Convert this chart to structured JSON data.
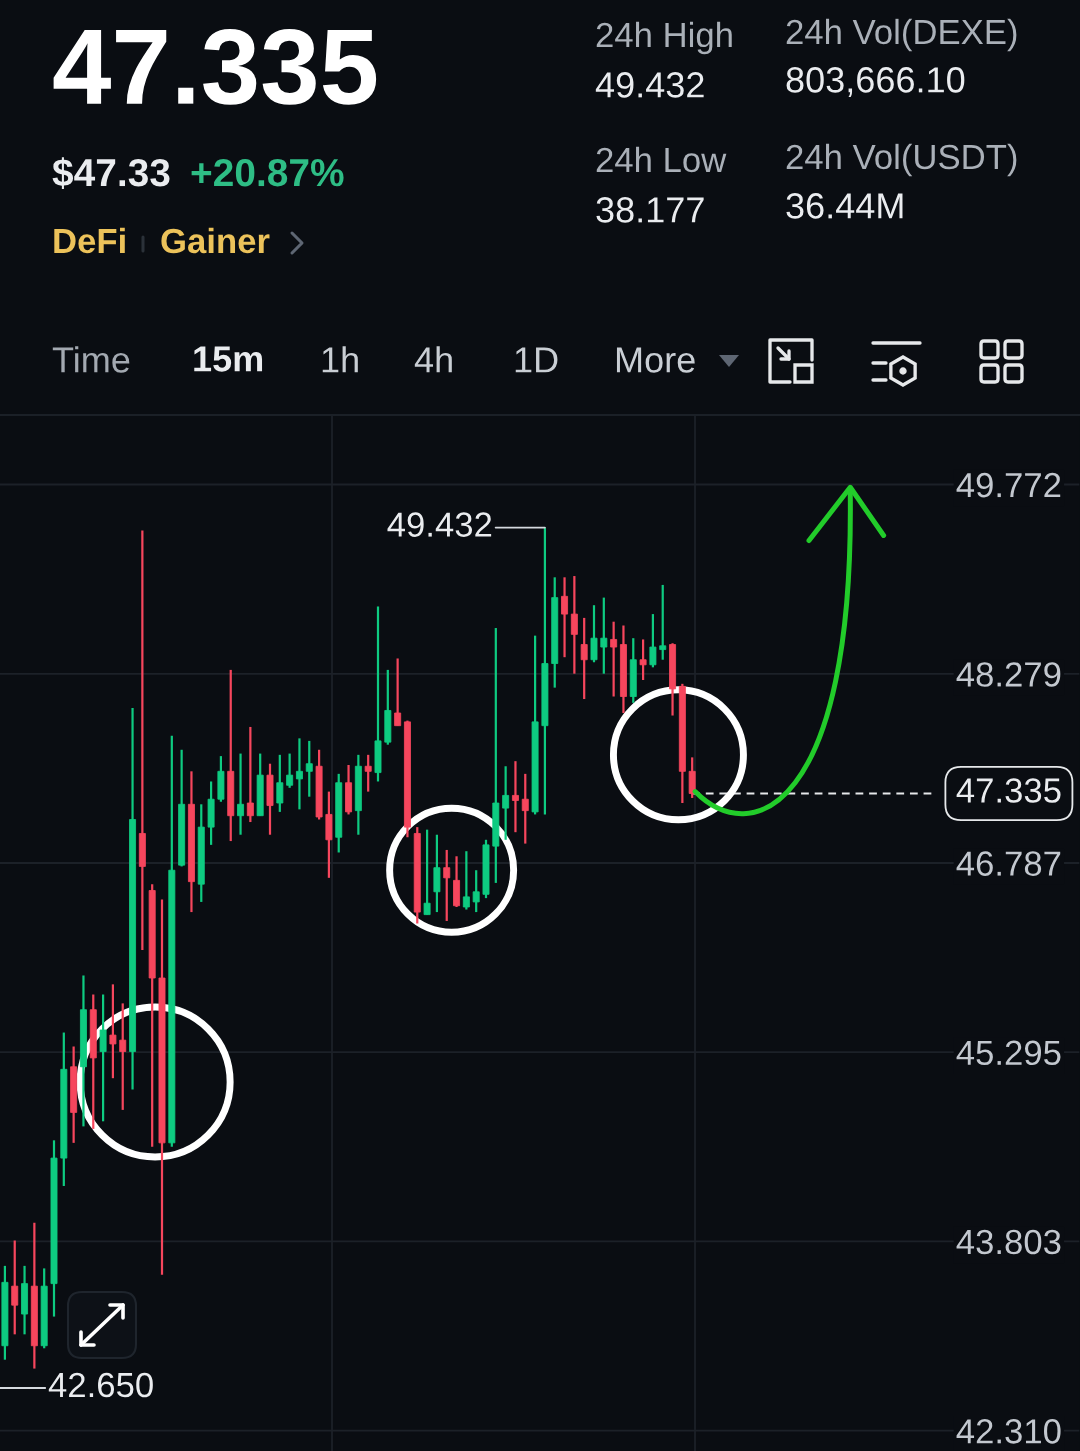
{
  "chart_data": {
    "type": "candlestick",
    "title": "47.335",
    "annotations": [
      "$47.33",
      "+20.87%",
      "DeFi",
      "Gainer",
      "24h High",
      "49.432",
      "24h Low",
      "38.177",
      "24h Vol(DEXE)",
      "803,666.10",
      "24h Vol(USDT)",
      "36.44M",
      "Time",
      "15m",
      "1h",
      "4h",
      "1D",
      "More",
      "49.432",
      "42.650"
    ],
    "categories": [
      null,
      null,
      null,
      null,
      null,
      null,
      null,
      null,
      null,
      null,
      null,
      null,
      null,
      null,
      null,
      null,
      null,
      null,
      null,
      null,
      null,
      null,
      null,
      null,
      null,
      null,
      null,
      null,
      null,
      null,
      null,
      null,
      null,
      null,
      null,
      null,
      null,
      null,
      null,
      null,
      null,
      null,
      null,
      null,
      null,
      null,
      null,
      null,
      null,
      null,
      null,
      null,
      null,
      null,
      null,
      null,
      null,
      null,
      null,
      null,
      null,
      null,
      null,
      null,
      null,
      null,
      null,
      null,
      null,
      null,
      null,
      null,
      null,
      null,
      null,
      null,
      null,
      null,
      null,
      null,
      null,
      null,
      null,
      null,
      null,
      null,
      null,
      null,
      null,
      null,
      null,
      null,
      null,
      null,
      null,
      null,
      null,
      null,
      null,
      null,
      null,
      null,
      null,
      null,
      null,
      null,
      null,
      null,
      null,
      null
    ],
    "ohlc": [
      [
        42.98,
        43.61,
        42.87,
        43.48
      ],
      [
        43.45,
        43.81,
        43.07,
        43.3
      ],
      [
        43.23,
        43.61,
        43.07,
        43.47
      ],
      [
        43.45,
        43.95,
        42.8,
        42.98
      ],
      [
        42.98,
        43.59,
        42.96,
        43.45
      ],
      [
        43.47,
        44.6,
        43.21,
        44.46
      ],
      [
        44.46,
        45.45,
        44.24,
        45.16
      ],
      [
        45.18,
        45.34,
        44.58,
        44.82
      ],
      [
        45.18,
        45.9,
        44.71,
        45.63
      ],
      [
        45.63,
        45.75,
        44.69,
        45.25
      ],
      [
        45.3,
        45.75,
        44.75,
        45.47
      ],
      [
        45.43,
        45.83,
        45.09,
        45.36
      ],
      [
        45.39,
        45.68,
        44.84,
        45.3
      ],
      [
        45.3,
        48.01,
        45.0,
        47.13
      ],
      [
        47.02,
        49.41,
        46.1,
        46.76
      ],
      [
        46.57,
        46.62,
        44.55,
        45.88
      ],
      [
        45.88,
        46.5,
        43.54,
        44.58
      ],
      [
        44.58,
        47.79,
        44.55,
        46.73
      ],
      [
        46.77,
        47.68,
        46.76,
        47.25
      ],
      [
        47.25,
        47.51,
        46.4,
        46.64
      ],
      [
        46.62,
        47.25,
        46.48,
        47.07
      ],
      [
        47.07,
        47.43,
        46.93,
        47.29
      ],
      [
        47.29,
        47.63,
        47.27,
        47.51
      ],
      [
        47.51,
        48.31,
        46.96,
        47.16
      ],
      [
        47.16,
        47.65,
        47.01,
        47.25
      ],
      [
        47.26,
        47.86,
        47.11,
        47.16
      ],
      [
        47.16,
        47.65,
        47.16,
        47.48
      ],
      [
        47.48,
        47.57,
        47.01,
        47.24
      ],
      [
        47.26,
        47.64,
        47.19,
        47.42
      ],
      [
        47.4,
        47.65,
        47.38,
        47.48
      ],
      [
        47.45,
        47.77,
        47.21,
        47.51
      ],
      [
        47.51,
        47.75,
        47.31,
        47.57
      ],
      [
        47.55,
        47.68,
        47.13,
        47.15
      ],
      [
        47.17,
        47.35,
        46.67,
        46.97
      ],
      [
        46.99,
        47.49,
        46.87,
        47.42
      ],
      [
        47.42,
        47.56,
        47.17,
        47.19
      ],
      [
        47.2,
        47.64,
        47.01,
        47.55
      ],
      [
        47.55,
        47.64,
        47.35,
        47.51
      ],
      [
        47.5,
        48.81,
        47.43,
        47.75
      ],
      [
        47.74,
        48.31,
        47.72,
        47.99
      ],
      [
        47.97,
        48.4,
        47.87,
        47.87
      ],
      [
        47.9,
        47.91,
        46.99,
        47.07
      ],
      [
        47.02,
        47.07,
        46.31,
        46.4
      ],
      [
        46.38,
        47.05,
        46.38,
        46.47
      ],
      [
        46.56,
        47.01,
        46.4,
        46.75
      ],
      [
        46.75,
        46.89,
        46.33,
        46.67
      ],
      [
        46.65,
        46.84,
        46.44,
        46.45
      ],
      [
        46.44,
        46.88,
        46.42,
        46.52
      ],
      [
        46.48,
        46.73,
        46.4,
        46.56
      ],
      [
        46.54,
        46.97,
        46.51,
        46.93
      ],
      [
        46.92,
        48.64,
        46.63,
        47.26
      ],
      [
        47.22,
        47.55,
        46.97,
        47.32
      ],
      [
        47.32,
        47.59,
        47.03,
        47.28
      ],
      [
        47.29,
        47.49,
        46.94,
        47.2
      ],
      [
        47.19,
        48.58,
        47.17,
        47.9
      ],
      [
        47.87,
        49.432,
        47.17,
        48.36
      ],
      [
        48.36,
        49.04,
        48.17,
        48.88
      ],
      [
        48.89,
        49.04,
        48.41,
        48.75
      ],
      [
        48.75,
        49.05,
        48.28,
        48.59
      ],
      [
        48.51,
        48.72,
        48.08,
        48.39
      ],
      [
        48.39,
        48.82,
        48.37,
        48.56
      ],
      [
        48.49,
        48.88,
        48.28,
        48.56
      ],
      [
        48.55,
        48.69,
        48.1,
        48.49
      ],
      [
        48.51,
        48.66,
        47.97,
        48.1
      ],
      [
        48.1,
        48.56,
        48.05,
        48.39
      ],
      [
        48.39,
        48.55,
        48.23,
        48.35
      ],
      [
        48.35,
        48.75,
        48.33,
        48.49
      ],
      [
        48.47,
        48.98,
        48.39,
        48.5
      ],
      [
        48.51,
        48.52,
        47.95,
        48.16
      ],
      [
        48.18,
        48.2,
        47.26,
        47.51
      ],
      [
        47.51,
        47.62,
        47.3,
        47.335
      ],
      null,
      null,
      null,
      null,
      null,
      null,
      null,
      null,
      null,
      null,
      null,
      null,
      null,
      null,
      null,
      null,
      null,
      null,
      null,
      null,
      null,
      null,
      null,
      null,
      null,
      null,
      null,
      null,
      null,
      null,
      null,
      null,
      null,
      null,
      null,
      null,
      null,
      null,
      null
    ],
    "colors": [
      "#0ecb81",
      "#f6465d",
      "#0ecb81",
      "#f6465d",
      "#0ecb81",
      "#0ecb81",
      "#0ecb81",
      "#f6465d",
      "#0ecb81",
      "#f6465d",
      "#0ecb81",
      "#f6465d",
      "#f6465d",
      "#0ecb81",
      "#f6465d",
      "#f6465d",
      "#f6465d",
      "#0ecb81",
      "#0ecb81",
      "#f6465d",
      "#0ecb81",
      "#0ecb81",
      "#0ecb81",
      "#f6465d",
      "#0ecb81",
      "#f6465d",
      "#0ecb81",
      "#f6465d",
      "#0ecb81",
      "#0ecb81",
      "#0ecb81",
      "#0ecb81",
      "#f6465d",
      "#f6465d",
      "#0ecb81",
      "#f6465d",
      "#0ecb81",
      "#f6465d",
      "#0ecb81",
      "#0ecb81",
      "#f6465d",
      "#f6465d",
      "#f6465d",
      "#0ecb81",
      "#0ecb81",
      "#f6465d",
      "#f6465d",
      "#0ecb81",
      "#0ecb81",
      "#0ecb81",
      "#0ecb81",
      "#0ecb81",
      "#f6465d",
      "#f6465d",
      "#0ecb81",
      "#0ecb81",
      "#0ecb81",
      "#f6465d",
      "#f6465d",
      "#f6465d",
      "#0ecb81",
      "#0ecb81",
      "#f6465d",
      "#f6465d",
      "#0ecb81",
      "#f6465d",
      "#0ecb81",
      "#0ecb81",
      "#f6465d",
      "#f6465d",
      "#f6465d",
      null,
      null,
      null,
      null,
      null,
      null,
      null,
      null,
      null,
      null,
      null,
      null,
      null,
      null,
      null,
      null,
      null,
      null,
      null,
      null,
      null,
      null,
      null,
      null,
      null,
      null,
      null,
      null,
      null,
      null,
      null,
      null,
      null,
      null,
      null,
      null,
      null,
      null,
      null
    ],
    "ylim": [
      42.15,
      50.32
    ],
    "yticks": [
      49.772,
      48.279,
      46.787,
      45.295,
      43.803,
      {
        "value": 42.31,
        "label": "42.310"
      }
    ],
    "grid": "y",
    "tick_labels": "y",
    "ref_lines": [
      {
        "axis": "y",
        "value": 47.335,
        "label": "47.335",
        "line_style": "dashed",
        "color": "#e6e8ea"
      }
    ]
  }
}
